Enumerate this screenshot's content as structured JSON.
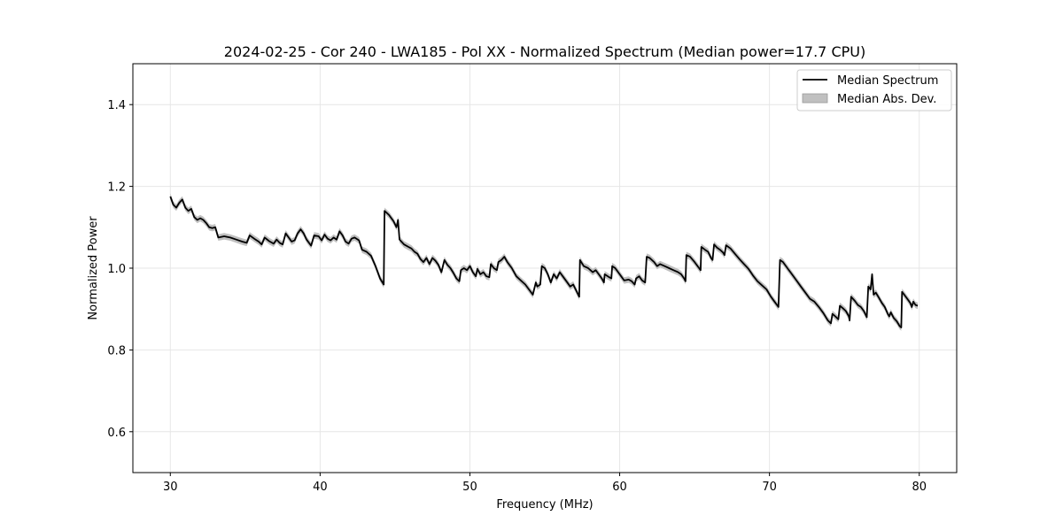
{
  "chart_data": {
    "type": "line",
    "title": "2024-02-25 - Cor 240 - LWA185 - Pol XX - Normalized Spectrum (Median power=17.7 CPU)",
    "xlabel": "Frequency (MHz)",
    "ylabel": "Normalized Power",
    "xlim": [
      27.5,
      82.5
    ],
    "ylim": [
      0.5,
      1.5
    ],
    "xticks": [
      30,
      40,
      50,
      60,
      70,
      80
    ],
    "yticks": [
      0.6,
      0.8,
      1.0,
      1.2,
      1.4
    ],
    "xtick_labels": [
      "30",
      "40",
      "50",
      "60",
      "70",
      "80"
    ],
    "ytick_labels": [
      "0.6",
      "0.8",
      "1.0",
      "1.2",
      "1.4"
    ],
    "grid": true,
    "legend_position": "top-right",
    "legend": [
      "Median Spectrum",
      "Median Abs. Dev."
    ],
    "colors": {
      "line": "#000000",
      "band": "#c0c0c0",
      "grid": "#e6e6e6"
    },
    "series": [
      {
        "name": "Median Spectrum",
        "mad": 0.008,
        "points": [
          [
            30.0,
            1.175
          ],
          [
            30.2,
            1.155
          ],
          [
            30.4,
            1.148
          ],
          [
            30.6,
            1.16
          ],
          [
            30.8,
            1.168
          ],
          [
            31.0,
            1.148
          ],
          [
            31.2,
            1.14
          ],
          [
            31.4,
            1.145
          ],
          [
            31.6,
            1.125
          ],
          [
            31.8,
            1.118
          ],
          [
            32.0,
            1.122
          ],
          [
            32.2,
            1.118
          ],
          [
            32.4,
            1.11
          ],
          [
            32.6,
            1.1
          ],
          [
            32.8,
            1.098
          ],
          [
            33.0,
            1.1
          ],
          [
            33.2,
            1.075
          ],
          [
            33.6,
            1.078
          ],
          [
            34.0,
            1.075
          ],
          [
            34.4,
            1.07
          ],
          [
            34.8,
            1.065
          ],
          [
            35.1,
            1.062
          ],
          [
            35.3,
            1.08
          ],
          [
            35.6,
            1.072
          ],
          [
            35.9,
            1.065
          ],
          [
            36.1,
            1.058
          ],
          [
            36.3,
            1.075
          ],
          [
            36.6,
            1.066
          ],
          [
            36.9,
            1.06
          ],
          [
            37.1,
            1.07
          ],
          [
            37.3,
            1.062
          ],
          [
            37.5,
            1.058
          ],
          [
            37.7,
            1.085
          ],
          [
            37.9,
            1.075
          ],
          [
            38.1,
            1.065
          ],
          [
            38.3,
            1.068
          ],
          [
            38.5,
            1.085
          ],
          [
            38.7,
            1.095
          ],
          [
            38.9,
            1.085
          ],
          [
            39.1,
            1.07
          ],
          [
            39.4,
            1.055
          ],
          [
            39.6,
            1.08
          ],
          [
            39.9,
            1.078
          ],
          [
            40.1,
            1.068
          ],
          [
            40.3,
            1.082
          ],
          [
            40.5,
            1.072
          ],
          [
            40.7,
            1.068
          ],
          [
            40.9,
            1.075
          ],
          [
            41.1,
            1.07
          ],
          [
            41.3,
            1.09
          ],
          [
            41.5,
            1.08
          ],
          [
            41.7,
            1.065
          ],
          [
            41.9,
            1.06
          ],
          [
            42.1,
            1.072
          ],
          [
            42.3,
            1.075
          ],
          [
            42.6,
            1.068
          ],
          [
            42.8,
            1.045
          ],
          [
            43.1,
            1.04
          ],
          [
            43.4,
            1.03
          ],
          [
            43.7,
            1.005
          ],
          [
            44.0,
            0.975
          ],
          [
            44.25,
            0.96
          ],
          [
            44.3,
            1.14
          ],
          [
            44.6,
            1.13
          ],
          [
            44.9,
            1.115
          ],
          [
            45.1,
            1.1
          ],
          [
            45.2,
            1.118
          ],
          [
            45.3,
            1.07
          ],
          [
            45.6,
            1.058
          ],
          [
            45.9,
            1.052
          ],
          [
            46.1,
            1.048
          ],
          [
            46.3,
            1.04
          ],
          [
            46.5,
            1.035
          ],
          [
            46.7,
            1.022
          ],
          [
            46.9,
            1.015
          ],
          [
            47.1,
            1.025
          ],
          [
            47.3,
            1.01
          ],
          [
            47.5,
            1.025
          ],
          [
            47.7,
            1.018
          ],
          [
            47.9,
            1.008
          ],
          [
            48.1,
            0.99
          ],
          [
            48.3,
            1.02
          ],
          [
            48.5,
            1.008
          ],
          [
            48.7,
            1.0
          ],
          [
            48.9,
            0.988
          ],
          [
            49.1,
            0.975
          ],
          [
            49.3,
            0.968
          ],
          [
            49.4,
            0.995
          ],
          [
            49.6,
            1.0
          ],
          [
            49.8,
            0.995
          ],
          [
            50.0,
            1.005
          ],
          [
            50.2,
            0.99
          ],
          [
            50.4,
            0.98
          ],
          [
            50.5,
            0.998
          ],
          [
            50.7,
            0.985
          ],
          [
            50.9,
            0.99
          ],
          [
            51.1,
            0.98
          ],
          [
            51.3,
            0.978
          ],
          [
            51.4,
            1.01
          ],
          [
            51.6,
            1.0
          ],
          [
            51.8,
            0.995
          ],
          [
            51.9,
            1.015
          ],
          [
            52.1,
            1.02
          ],
          [
            52.3,
            1.028
          ],
          [
            52.5,
            1.015
          ],
          [
            52.8,
            1.0
          ],
          [
            53.1,
            0.98
          ],
          [
            53.4,
            0.97
          ],
          [
            53.7,
            0.96
          ],
          [
            54.0,
            0.945
          ],
          [
            54.2,
            0.935
          ],
          [
            54.4,
            0.965
          ],
          [
            54.5,
            0.955
          ],
          [
            54.7,
            0.96
          ],
          [
            54.8,
            1.005
          ],
          [
            55.0,
            1.0
          ],
          [
            55.2,
            0.985
          ],
          [
            55.4,
            0.965
          ],
          [
            55.6,
            0.985
          ],
          [
            55.8,
            0.975
          ],
          [
            56.0,
            0.99
          ],
          [
            56.2,
            0.98
          ],
          [
            56.5,
            0.965
          ],
          [
            56.7,
            0.955
          ],
          [
            56.9,
            0.96
          ],
          [
            57.1,
            0.945
          ],
          [
            57.3,
            0.93
          ],
          [
            57.35,
            1.02
          ],
          [
            57.6,
            1.005
          ],
          [
            57.9,
            1.0
          ],
          [
            58.2,
            0.99
          ],
          [
            58.4,
            0.995
          ],
          [
            58.6,
            0.985
          ],
          [
            58.8,
            0.975
          ],
          [
            58.95,
            0.965
          ],
          [
            59.0,
            0.985
          ],
          [
            59.3,
            0.978
          ],
          [
            59.45,
            0.975
          ],
          [
            59.5,
            1.005
          ],
          [
            59.7,
            1.0
          ],
          [
            59.9,
            0.99
          ],
          [
            60.1,
            0.98
          ],
          [
            60.3,
            0.97
          ],
          [
            60.6,
            0.972
          ],
          [
            60.8,
            0.968
          ],
          [
            61.0,
            0.96
          ],
          [
            61.1,
            0.975
          ],
          [
            61.3,
            0.98
          ],
          [
            61.5,
            0.97
          ],
          [
            61.7,
            0.965
          ],
          [
            61.8,
            1.028
          ],
          [
            62.0,
            1.025
          ],
          [
            62.3,
            1.015
          ],
          [
            62.5,
            1.005
          ],
          [
            62.7,
            1.01
          ],
          [
            63.0,
            1.005
          ],
          [
            63.3,
            1.0
          ],
          [
            63.6,
            0.995
          ],
          [
            63.9,
            0.99
          ],
          [
            64.1,
            0.985
          ],
          [
            64.3,
            0.975
          ],
          [
            64.4,
            0.968
          ],
          [
            64.45,
            1.032
          ],
          [
            64.7,
            1.028
          ],
          [
            65.0,
            1.015
          ],
          [
            65.3,
            1.0
          ],
          [
            65.4,
            0.995
          ],
          [
            65.45,
            1.052
          ],
          [
            65.7,
            1.045
          ],
          [
            65.9,
            1.04
          ],
          [
            66.1,
            1.025
          ],
          [
            66.2,
            1.02
          ],
          [
            66.3,
            1.058
          ],
          [
            66.5,
            1.05
          ],
          [
            66.7,
            1.045
          ],
          [
            66.9,
            1.038
          ],
          [
            67.0,
            1.032
          ],
          [
            67.1,
            1.056
          ],
          [
            67.4,
            1.048
          ],
          [
            67.7,
            1.035
          ],
          [
            68.0,
            1.022
          ],
          [
            68.3,
            1.01
          ],
          [
            68.6,
            0.998
          ],
          [
            68.9,
            0.982
          ],
          [
            69.2,
            0.968
          ],
          [
            69.5,
            0.958
          ],
          [
            69.8,
            0.948
          ],
          [
            70.1,
            0.93
          ],
          [
            70.4,
            0.915
          ],
          [
            70.6,
            0.905
          ],
          [
            70.7,
            1.02
          ],
          [
            70.9,
            1.015
          ],
          [
            71.2,
            1.0
          ],
          [
            71.5,
            0.985
          ],
          [
            71.8,
            0.97
          ],
          [
            72.1,
            0.955
          ],
          [
            72.4,
            0.94
          ],
          [
            72.7,
            0.925
          ],
          [
            73.0,
            0.918
          ],
          [
            73.3,
            0.905
          ],
          [
            73.6,
            0.89
          ],
          [
            73.9,
            0.872
          ],
          [
            74.1,
            0.865
          ],
          [
            74.2,
            0.888
          ],
          [
            74.4,
            0.882
          ],
          [
            74.6,
            0.875
          ],
          [
            74.7,
            0.908
          ],
          [
            74.9,
            0.902
          ],
          [
            75.1,
            0.895
          ],
          [
            75.3,
            0.882
          ],
          [
            75.35,
            0.872
          ],
          [
            75.45,
            0.93
          ],
          [
            75.7,
            0.92
          ],
          [
            75.9,
            0.91
          ],
          [
            76.1,
            0.905
          ],
          [
            76.3,
            0.895
          ],
          [
            76.5,
            0.88
          ],
          [
            76.6,
            0.955
          ],
          [
            76.75,
            0.948
          ],
          [
            76.85,
            0.985
          ],
          [
            76.95,
            0.935
          ],
          [
            77.1,
            0.94
          ],
          [
            77.3,
            0.928
          ],
          [
            77.5,
            0.915
          ],
          [
            77.7,
            0.905
          ],
          [
            77.9,
            0.888
          ],
          [
            78.0,
            0.882
          ],
          [
            78.1,
            0.892
          ],
          [
            78.3,
            0.878
          ],
          [
            78.5,
            0.87
          ],
          [
            78.7,
            0.858
          ],
          [
            78.8,
            0.855
          ],
          [
            78.85,
            0.942
          ],
          [
            79.0,
            0.935
          ],
          [
            79.2,
            0.925
          ],
          [
            79.4,
            0.915
          ],
          [
            79.5,
            0.905
          ],
          [
            79.6,
            0.918
          ],
          [
            79.75,
            0.91
          ],
          [
            79.9,
            0.908
          ]
        ]
      }
    ]
  }
}
